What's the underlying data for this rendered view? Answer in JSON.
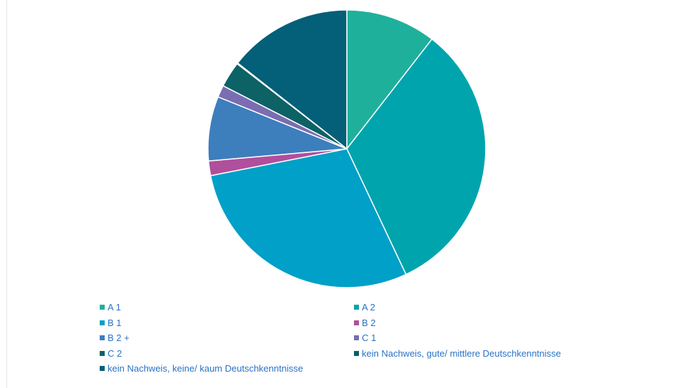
{
  "chart_data": {
    "type": "pie",
    "title": "",
    "start_angle_deg": 0,
    "direction": "clockwise",
    "legend_position": "bottom",
    "slices": [
      {
        "label": "A 1",
        "value": 10.5,
        "color": "#1fb09c"
      },
      {
        "label": "A 2",
        "value": 32.5,
        "color": "#00a4ad"
      },
      {
        "label": "B 1",
        "value": 28.9,
        "color": "#00a0c8"
      },
      {
        "label": "B 2",
        "value": 1.7,
        "color": "#b04f9c"
      },
      {
        "label": "B 2 +",
        "value": 7.5,
        "color": "#3d7ebd"
      },
      {
        "label": "C 1",
        "value": 1.4,
        "color": "#7a6db2"
      },
      {
        "label": "C 2",
        "value": 3.0,
        "color": "#0d6266"
      },
      {
        "label": "kein Nachweis, gute/ mittlere Deutschkenntnisse",
        "value": 0.1,
        "color": "#0a5f62"
      },
      {
        "label": "kein Nachweis, keine/ kaum Deutschkenntnisse",
        "value": 14.4,
        "color": "#045f78"
      }
    ]
  }
}
